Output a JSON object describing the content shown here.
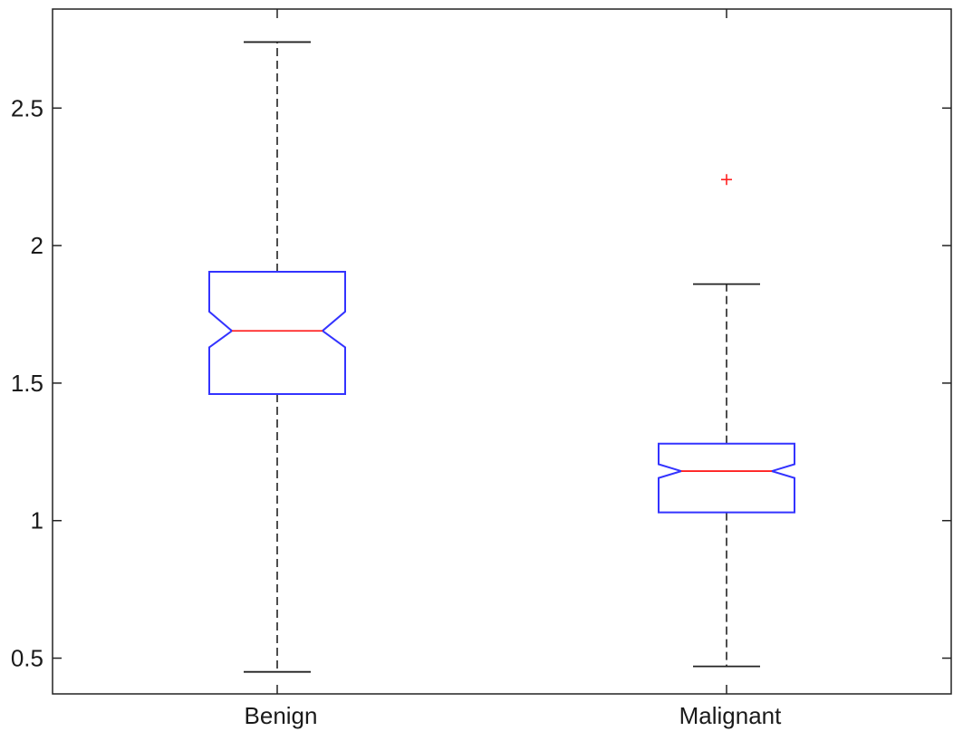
{
  "chart_data": {
    "type": "boxplot",
    "notched": true,
    "categories": [
      "Benign",
      "Malignant"
    ],
    "boxes": [
      {
        "label": "Benign",
        "whisker_low": 0.45,
        "q1": 1.46,
        "notch_low": 1.63,
        "median": 1.69,
        "notch_high": 1.76,
        "q3": 1.905,
        "whisker_high": 2.74,
        "outliers": []
      },
      {
        "label": "Malignant",
        "whisker_low": 0.47,
        "q1": 1.03,
        "notch_low": 1.155,
        "median": 1.18,
        "notch_high": 1.205,
        "q3": 1.28,
        "whisker_high": 1.86,
        "outliers": [
          2.24
        ]
      }
    ],
    "yticks": [
      0.5,
      1,
      1.5,
      2,
      2.5
    ],
    "ytick_labels": [
      "0.5",
      "1",
      "1.5",
      "2",
      "2.5"
    ],
    "ylim": [
      0.37,
      2.86
    ],
    "xlim": [
      0.5,
      2.5
    ],
    "title": "",
    "xlabel": "",
    "ylabel": "",
    "colors": {
      "box": "#3333ff",
      "median": "#ff2020",
      "whisker": "#222222",
      "outlier": "#ff2020",
      "axis": "#222222"
    }
  }
}
